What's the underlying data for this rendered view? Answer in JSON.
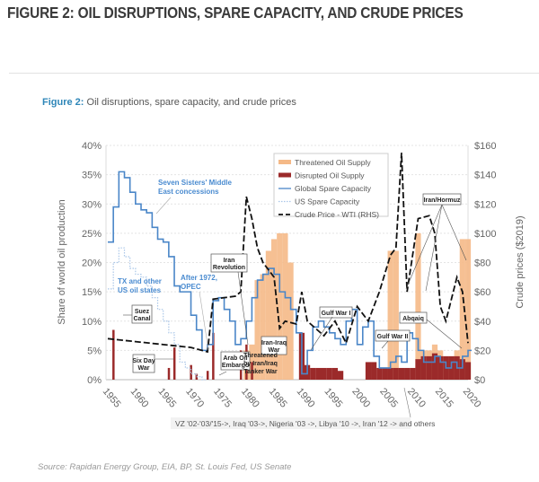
{
  "page_title": "FIGURE 2: OIL DISRUPTIONS, SPARE CAPACITY, AND CRUDE PRICES",
  "figure_caption": {
    "label": "Figure 2:",
    "text": " Oil disruptions, spare capacity, and crude prices"
  },
  "source": "Source: Rapidan Energy Group, EIA, BP, St. Louis Fed, US Senate",
  "chart_data": {
    "type": "line",
    "ylabel": "Share of world oil production",
    "y2label": "Crude prices ($2019)",
    "ylim": [
      0,
      40
    ],
    "y2lim": [
      0,
      160
    ],
    "xlim": [
      1955,
      2020
    ],
    "yticks": [
      "0%",
      "5%",
      "10%",
      "15%",
      "20%",
      "25%",
      "30%",
      "35%",
      "40%"
    ],
    "y2ticks": [
      "$0",
      "$20",
      "$40",
      "$60",
      "$80",
      "$100",
      "$120",
      "$140",
      "$160"
    ],
    "xticks": [
      "1955",
      "1960",
      "1965",
      "1970",
      "1975",
      "1980",
      "1985",
      "1990",
      "1995",
      "2000",
      "2005",
      "2010",
      "2015",
      "2020"
    ],
    "grid": true,
    "legend_position": "top-right",
    "colors": {
      "threatened": "#f5b987",
      "disrupted": "#9b2a2a",
      "global": "#4a86c8",
      "us": "#a9c6e8",
      "price": "#111111"
    },
    "series": [
      {
        "name": "Threatened Oil Supply",
        "kind": "area",
        "axis": "left",
        "unit": "%",
        "x": [
          1980,
          1981,
          1982,
          1983,
          1984,
          1985,
          1986,
          1987,
          1988,
          2006,
          2007,
          2011,
          2012,
          2013,
          2014,
          2015,
          2016,
          2017,
          2018,
          2019,
          2020
        ],
        "values": [
          5,
          6,
          17,
          18,
          22,
          24,
          25,
          25,
          20,
          22,
          22,
          25,
          5,
          5,
          6,
          5,
          4,
          4,
          5,
          24,
          24
        ]
      },
      {
        "name": "Disrupted Oil Supply",
        "kind": "area",
        "axis": "left",
        "unit": "%",
        "x": [
          1956,
          1966,
          1967,
          1970,
          1971,
          1973,
          1974,
          1979,
          1980,
          1981,
          1990,
          1991,
          1992,
          1993,
          1994,
          1995,
          1996,
          1997,
          2002,
          2003,
          2004,
          2005,
          2006,
          2007,
          2008,
          2009,
          2010,
          2011,
          2012,
          2013,
          2014,
          2015,
          2016,
          2017,
          2018,
          2019,
          2020
        ],
        "values": [
          8.5,
          2,
          5.5,
          2.5,
          1,
          1.5,
          8,
          5,
          6,
          3,
          8,
          2.5,
          2,
          2,
          2,
          2,
          2,
          1.5,
          3,
          3,
          2,
          2,
          2,
          2,
          2,
          2,
          2,
          3.5,
          4,
          4,
          4.5,
          4,
          4,
          4,
          4,
          3.5,
          3
        ]
      },
      {
        "name": "Global Spare Capacity",
        "kind": "step",
        "axis": "left",
        "unit": "%",
        "x": [
          1955,
          1956,
          1957,
          1958,
          1959,
          1960,
          1961,
          1962,
          1963,
          1964,
          1965,
          1966,
          1967,
          1968,
          1970,
          1971,
          1972,
          1973,
          1974,
          1975,
          1976,
          1977,
          1978,
          1979,
          1980,
          1981,
          1982,
          1983,
          1984,
          1985,
          1986,
          1987,
          1988,
          1989,
          1990,
          1991,
          1992,
          1993,
          1994,
          1995,
          1996,
          1997,
          1998,
          1999,
          2000,
          2001,
          2002,
          2003,
          2004,
          2005,
          2006,
          2007,
          2008,
          2009,
          2010,
          2011,
          2012,
          2013,
          2014,
          2015,
          2016,
          2017,
          2018,
          2019,
          2020
        ],
        "values": [
          23.5,
          29.5,
          35.5,
          34.5,
          32,
          30,
          29,
          28.5,
          26,
          24,
          23.5,
          21,
          16,
          15,
          11,
          8.5,
          5,
          6,
          13.5,
          14,
          12,
          10,
          6,
          7,
          10,
          14,
          17,
          18,
          19,
          18,
          15,
          14,
          12,
          8,
          1,
          5,
          9,
          10,
          9,
          8,
          7,
          6,
          10,
          12,
          6,
          9,
          10,
          4,
          2,
          2,
          3,
          4,
          3,
          8,
          7,
          5,
          3,
          3,
          4,
          3,
          2,
          3,
          2,
          4,
          5
        ]
      },
      {
        "name": "US Spare Capacity",
        "kind": "step",
        "axis": "left",
        "unit": "%",
        "x": [
          1955,
          1956,
          1957,
          1958,
          1959,
          1960,
          1961,
          1962,
          1963,
          1964,
          1965,
          1966,
          1967,
          1968,
          1969,
          1970,
          1971,
          1972
        ],
        "values": [
          15.5,
          20,
          22.5,
          21,
          19,
          18,
          17.5,
          16,
          14,
          12,
          10,
          8,
          6,
          3,
          2,
          1,
          0.5,
          0
        ]
      },
      {
        "name": "Crude Price - WTI (RHS)",
        "kind": "line",
        "axis": "right",
        "unit": "$2019",
        "x": [
          1955,
          1960,
          1965,
          1970,
          1972,
          1973,
          1974,
          1976,
          1978,
          1979,
          1980,
          1981,
          1982,
          1983,
          1985,
          1986,
          1987,
          1989,
          1990,
          1991,
          1994,
          1996,
          1998,
          2000,
          2002,
          2004,
          2006,
          2007,
          2008,
          2009,
          2011,
          2013,
          2014,
          2015,
          2016,
          2018,
          2019,
          2020
        ],
        "values": [
          28,
          26,
          24,
          22,
          20,
          19,
          55,
          56,
          57,
          60,
          125,
          110,
          90,
          80,
          70,
          35,
          40,
          38,
          60,
          40,
          30,
          40,
          25,
          50,
          40,
          60,
          85,
          90,
          155,
          60,
          110,
          112,
          100,
          50,
          40,
          70,
          60,
          25
        ]
      }
    ],
    "annotations": {
      "seven_sisters": [
        "Seven Sisters' Middle",
        "East concessions"
      ],
      "tx": [
        "TX and other",
        "US oil states"
      ],
      "opec": [
        "After 1972,",
        "OPEC"
      ],
      "iran_rev": [
        "Iran",
        "Revolution"
      ],
      "suez": [
        "Suez",
        "Canal"
      ],
      "six_day": [
        "Six Day",
        "War"
      ],
      "arab": [
        "Arab Oil",
        "Embargo"
      ],
      "iran_iraq": [
        "Iran-Iraq",
        "War"
      ],
      "tanker": [
        "Threatened",
        "by Iran/Iraq",
        "Tanker War"
      ],
      "gulf1": "Gulf War I",
      "gulf2": "Gulf War II",
      "abqaiq": "Abqaiq",
      "hormuz": "Iran/Hormuz",
      "bottom_note": "VZ '02-'03/'15->, Iraq '03->, Nigeria '03 ->, Libya '10 ->, Iran '12 -> and others"
    }
  }
}
